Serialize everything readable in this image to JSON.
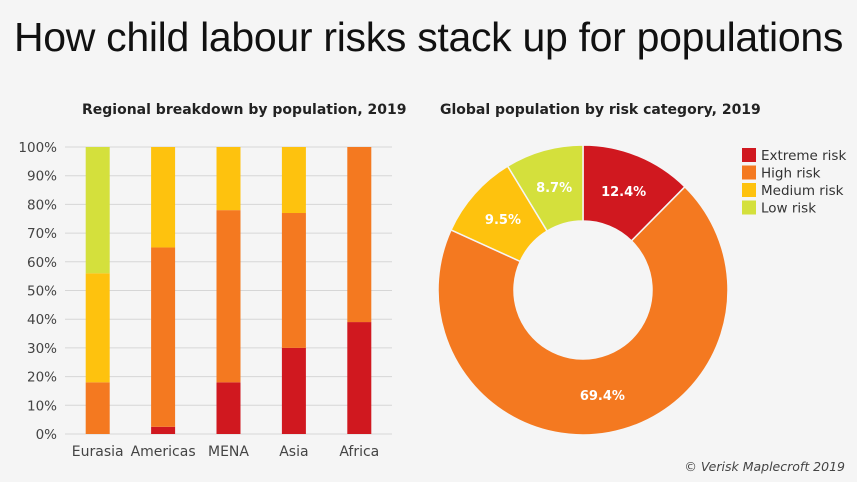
{
  "title": "How child labour risks stack up for populations",
  "credit": "© Verisk Maplecroft 2019",
  "colors": {
    "extreme": "#d0181f",
    "high": "#f47920",
    "medium": "#fec20e",
    "low": "#d4e03c"
  },
  "chart_data": [
    {
      "type": "bar",
      "stacked": true,
      "title": "Regional breakdown by population, 2019",
      "categories": [
        "Eurasia",
        "Americas",
        "MENA",
        "Asia",
        "Africa"
      ],
      "series": [
        {
          "name": "Extreme risk",
          "color": "#d0181f",
          "values": [
            0,
            2.5,
            18,
            30,
            39
          ]
        },
        {
          "name": "High risk",
          "color": "#f47920",
          "values": [
            18,
            62.5,
            60,
            47,
            61
          ]
        },
        {
          "name": "Medium risk",
          "color": "#fec20e",
          "values": [
            38,
            35,
            22,
            23,
            0
          ]
        },
        {
          "name": "Low risk",
          "color": "#d4e03c",
          "values": [
            44,
            0,
            0,
            0,
            0
          ]
        }
      ],
      "ylim": [
        0,
        100
      ],
      "yticks": [
        "0%",
        "10%",
        "20%",
        "30%",
        "40%",
        "50%",
        "60%",
        "70%",
        "80%",
        "90%",
        "100%"
      ],
      "grid": true
    },
    {
      "type": "pie",
      "donut": true,
      "title": "Global population by risk category, 2019",
      "legend_position": "top-right",
      "slices": [
        {
          "name": "Extreme risk",
          "value": 12.4,
          "label": "12.4%",
          "color": "#d0181f"
        },
        {
          "name": "High risk",
          "value": 69.4,
          "label": "69.4%",
          "color": "#f47920"
        },
        {
          "name": "Medium risk",
          "value": 9.5,
          "label": "9.5%",
          "color": "#fec20e"
        },
        {
          "name": "Low risk",
          "value": 8.7,
          "label": "8.7%",
          "color": "#d4e03c"
        }
      ]
    }
  ]
}
